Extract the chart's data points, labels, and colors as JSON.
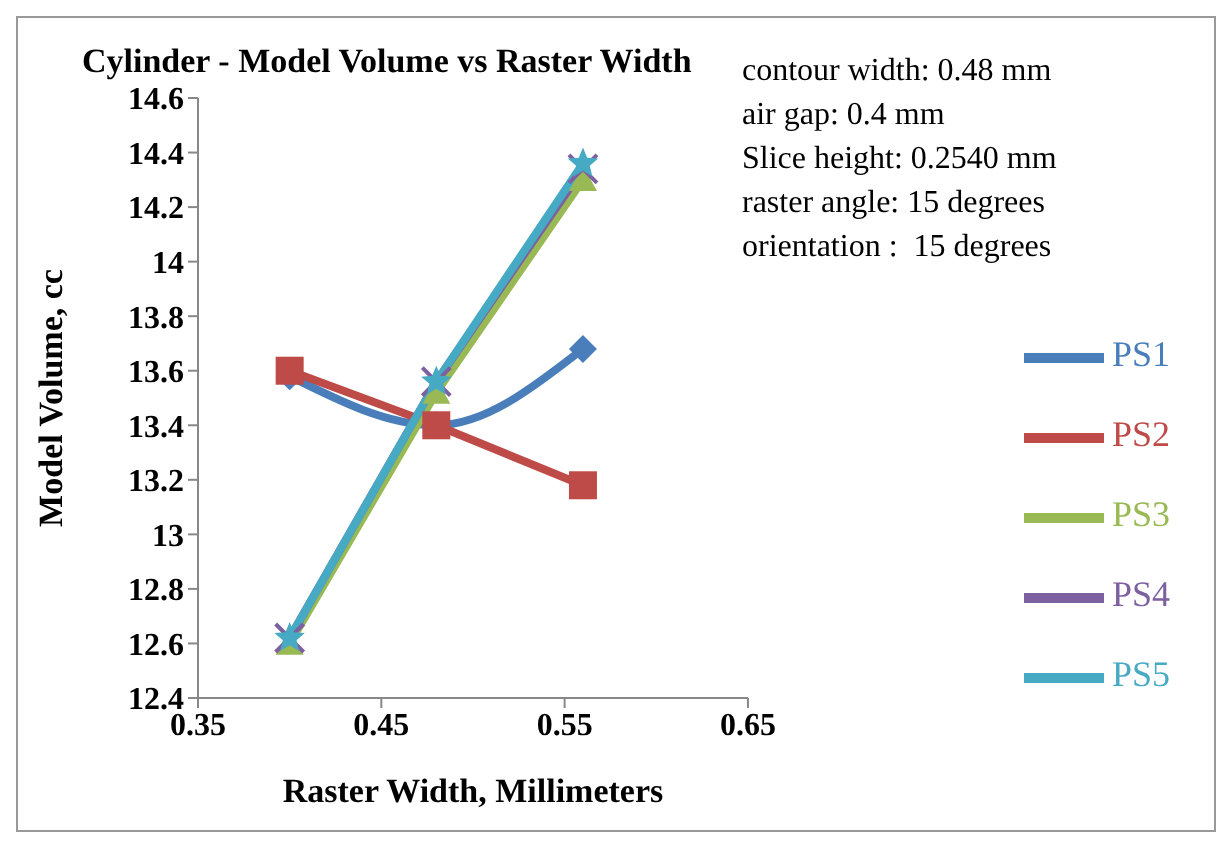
{
  "chart_data": {
    "type": "line",
    "title": "Cylinder - Model Volume vs Raster Width",
    "xlabel": "Raster Width, Millimeters",
    "ylabel": "Model Volume, cc",
    "x": [
      0.4,
      0.48,
      0.56
    ],
    "series": [
      {
        "name": "PS1",
        "color": "#4a7ebb",
        "marker": "diamond",
        "values": [
          13.58,
          13.4,
          13.68
        ]
      },
      {
        "name": "PS2",
        "color": "#be4b48",
        "marker": "square",
        "values": [
          13.6,
          13.4,
          13.18
        ]
      },
      {
        "name": "PS3",
        "color": "#98b954",
        "marker": "triangle",
        "values": [
          12.6,
          13.52,
          14.3
        ]
      },
      {
        "name": "PS4",
        "color": "#7d60a0",
        "marker": "cross",
        "values": [
          12.62,
          13.56,
          14.34
        ]
      },
      {
        "name": "PS5",
        "color": "#46aac5",
        "marker": "star",
        "values": [
          12.62,
          13.56,
          14.36
        ]
      }
    ],
    "xlim": [
      0.35,
      0.65
    ],
    "xticks": [
      0.35,
      0.45,
      0.55,
      0.65
    ],
    "ylim": [
      12.4,
      14.6
    ],
    "yticks": [
      12.4,
      12.6,
      12.8,
      13,
      13.2,
      13.4,
      13.6,
      13.8,
      14,
      14.2,
      14.4,
      14.6
    ],
    "annotations": [
      "contour width: 0.48 mm",
      "air gap: 0.4 mm",
      "Slice height: 0.2540 mm",
      "raster angle: 15 degrees",
      "orientation :  15 degrees"
    ],
    "grid": false,
    "legend": "right",
    "line_style": "solid"
  }
}
